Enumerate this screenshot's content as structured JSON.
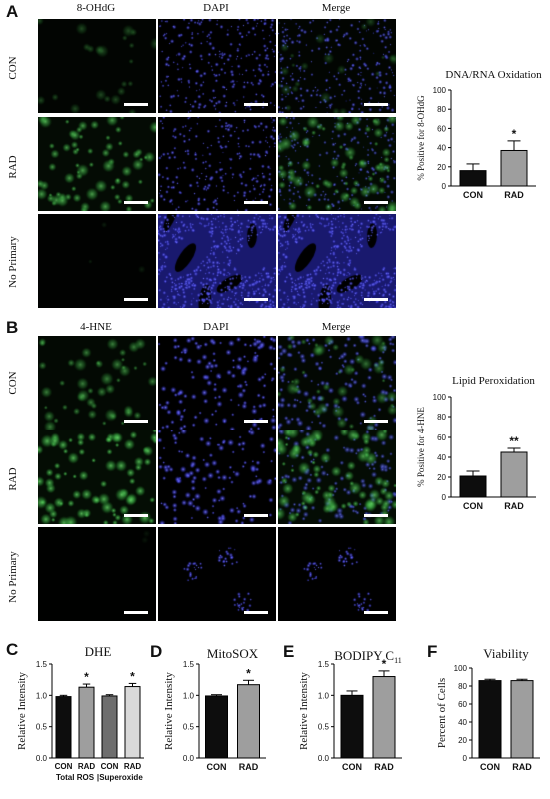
{
  "panels": {
    "A": {
      "letter": "A",
      "columns": [
        "8-OHdG",
        "DAPI",
        "Merge"
      ],
      "rows": [
        "CON",
        "RAD",
        "No Primary"
      ]
    },
    "B": {
      "letter": "B",
      "columns": [
        "4-HNE",
        "DAPI",
        "Merge"
      ],
      "rows": [
        "CON",
        "RAD",
        "No Primary"
      ]
    },
    "C": {
      "letter": "C"
    },
    "D": {
      "letter": "D"
    },
    "E": {
      "letter": "E"
    },
    "F": {
      "letter": "F"
    }
  },
  "colors": {
    "dark_bar": "#0d0d0d",
    "gray_bar": "#9e9e9e",
    "mid_gray_bar": "#6e6e6e",
    "light_bar": "#d9d9d9",
    "green_stain": "#3ccf4e",
    "blue_stain": "#3a3aff"
  },
  "chart_data": [
    {
      "id": "A",
      "type": "bar",
      "title": "DNA/RNA Oxidation",
      "ylabel": "% Positive for 8-OHdG",
      "categories": [
        "CON",
        "RAD"
      ],
      "values": [
        16,
        37
      ],
      "errors": [
        7,
        10
      ],
      "significance": [
        "",
        "*"
      ],
      "ylim": [
        0,
        100
      ],
      "yticks": [
        0,
        20,
        40,
        60,
        80,
        100
      ]
    },
    {
      "id": "B",
      "type": "bar",
      "title": "Lipid Peroxidation",
      "ylabel": "% Positive for 4-HNE",
      "categories": [
        "CON",
        "RAD"
      ],
      "values": [
        21,
        45
      ],
      "errors": [
        5,
        4
      ],
      "significance": [
        "",
        "**"
      ],
      "ylim": [
        0,
        100
      ],
      "yticks": [
        0,
        20,
        40,
        60,
        80,
        100
      ]
    },
    {
      "id": "C",
      "type": "bar",
      "title": "DHE",
      "ylabel": "Relative Intensity",
      "categories": [
        "CON",
        "RAD",
        "CON",
        "RAD"
      ],
      "values": [
        0.98,
        1.13,
        0.99,
        1.14
      ],
      "errors": [
        0.02,
        0.05,
        0.02,
        0.05
      ],
      "significance": [
        "",
        "*",
        "",
        "*"
      ],
      "group_labels": [
        "Total ROS",
        "Superoxide"
      ],
      "group_separator": "|",
      "ylim": [
        0,
        1.5
      ],
      "yticks": [
        "0.0",
        "0.5",
        "1.0",
        "1.5"
      ]
    },
    {
      "id": "D",
      "type": "bar",
      "title": "MitoSOX",
      "ylabel": "Relative Intensity",
      "categories": [
        "CON",
        "RAD"
      ],
      "values": [
        0.99,
        1.17
      ],
      "errors": [
        0.02,
        0.07
      ],
      "significance": [
        "",
        "*"
      ],
      "ylim": [
        0,
        1.5
      ],
      "yticks": [
        "0.0",
        "0.5",
        "1.0",
        "1.5"
      ]
    },
    {
      "id": "E",
      "type": "bar",
      "title": "BODIPY C",
      "title_sub": "11",
      "ylabel": "Relative Intensity",
      "categories": [
        "CON",
        "RAD"
      ],
      "values": [
        1.0,
        1.3
      ],
      "errors": [
        0.07,
        0.09
      ],
      "significance": [
        "",
        "*"
      ],
      "ylim": [
        0,
        1.5
      ],
      "yticks": [
        "0.0",
        "0.5",
        "1.0",
        "1.5"
      ]
    },
    {
      "id": "F",
      "type": "bar",
      "title": "Viability",
      "ylabel": "Percent of Cells",
      "categories": [
        "CON",
        "RAD"
      ],
      "values": [
        86,
        86
      ],
      "errors": [
        1.5,
        1.5
      ],
      "significance": [
        "",
        ""
      ],
      "ylim": [
        0,
        100
      ],
      "yticks": [
        0,
        20,
        40,
        60,
        80,
        100
      ]
    }
  ]
}
